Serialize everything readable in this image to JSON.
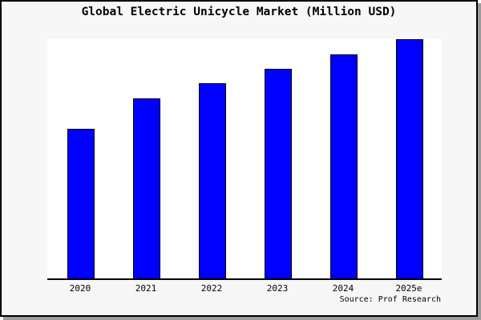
{
  "figure": {
    "background": "#f7f7f7",
    "plot_background": "#ffffff",
    "frame_border_color": "#000000",
    "shadow_color": "#9c9c9c",
    "axis_color": "#000000",
    "text_color": "#000000"
  },
  "chart_data": {
    "type": "bar",
    "title": "Global Electric Unicycle Market (Million USD)",
    "categories": [
      "2020",
      "2021",
      "2022",
      "2023",
      "2024",
      "2025e"
    ],
    "values": [
      62.6,
      75.2,
      81.5,
      87.7,
      93.7,
      100
    ],
    "value_note": "no y-axis ticks or labels shown; values estimated as percent of tallest bar (2025e = 100)",
    "xlabel": "",
    "ylabel": "",
    "ylim": [
      0,
      100
    ],
    "grid": false,
    "legend": false,
    "y_axis_visible": false,
    "bar_color": "#0000ff",
    "bar_edge_color": "#000000",
    "source_text": "Source: Prof Research"
  }
}
